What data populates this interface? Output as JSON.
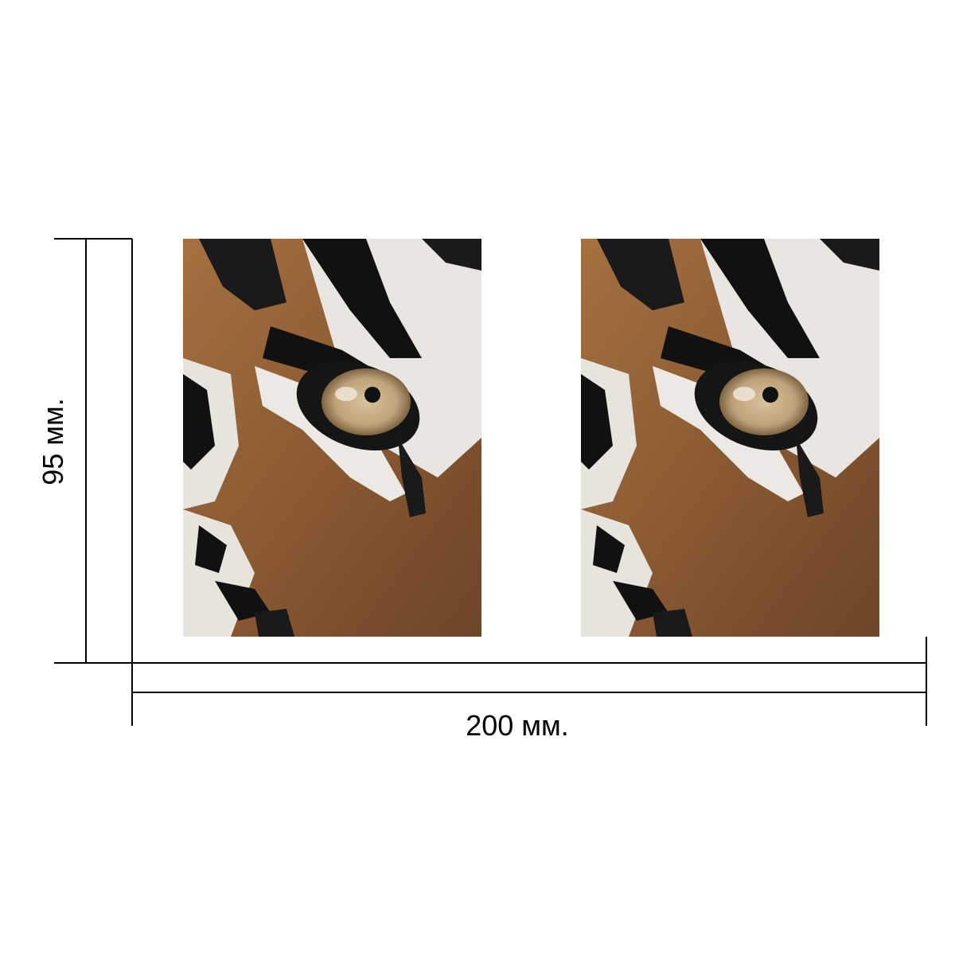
{
  "dimensions": {
    "height_label": "95 мм.",
    "width_label": "200 мм."
  },
  "photos": [
    {
      "subject": "tiger-eye-closeup"
    },
    {
      "subject": "tiger-eye-closeup"
    }
  ],
  "colors": {
    "line": "#000000",
    "fur_brown": "#8a5a33",
    "fur_white": "#e9e6e1",
    "stripe_black": "#111111",
    "iris": "#bfa27a"
  }
}
